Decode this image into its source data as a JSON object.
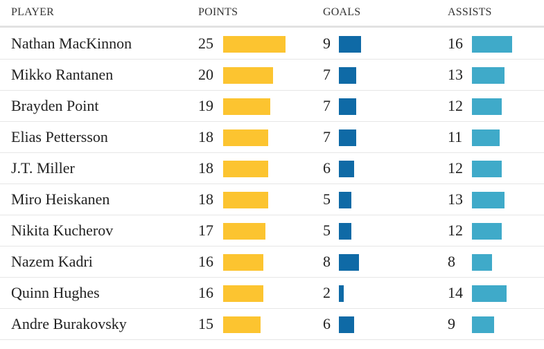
{
  "headers": {
    "player": "PLAYER",
    "points": "POINTS",
    "goals": "GOALS",
    "assists": "ASSISTS"
  },
  "colors": {
    "points": "#fcc430",
    "goals": "#0f6aa6",
    "assists": "#3faac9"
  },
  "chart_data": {
    "type": "table",
    "columns": [
      "PLAYER",
      "POINTS",
      "GOALS",
      "ASSISTS"
    ],
    "rows": [
      {
        "player": "Nathan MacKinnon",
        "points": 25,
        "goals": 9,
        "assists": 16
      },
      {
        "player": "Mikko Rantanen",
        "points": 20,
        "goals": 7,
        "assists": 13
      },
      {
        "player": "Brayden Point",
        "points": 19,
        "goals": 7,
        "assists": 12
      },
      {
        "player": "Elias Pettersson",
        "points": 18,
        "goals": 7,
        "assists": 11
      },
      {
        "player": "J.T. Miller",
        "points": 18,
        "goals": 6,
        "assists": 12
      },
      {
        "player": "Miro Heiskanen",
        "points": 18,
        "goals": 5,
        "assists": 13
      },
      {
        "player": "Nikita Kucherov",
        "points": 17,
        "goals": 5,
        "assists": 12
      },
      {
        "player": "Nazem Kadri",
        "points": 16,
        "goals": 8,
        "assists": 8
      },
      {
        "player": "Quinn Hughes",
        "points": 16,
        "goals": 2,
        "assists": 14
      },
      {
        "player": "Andre Burakovsky",
        "points": 15,
        "goals": 6,
        "assists": 9
      }
    ]
  }
}
